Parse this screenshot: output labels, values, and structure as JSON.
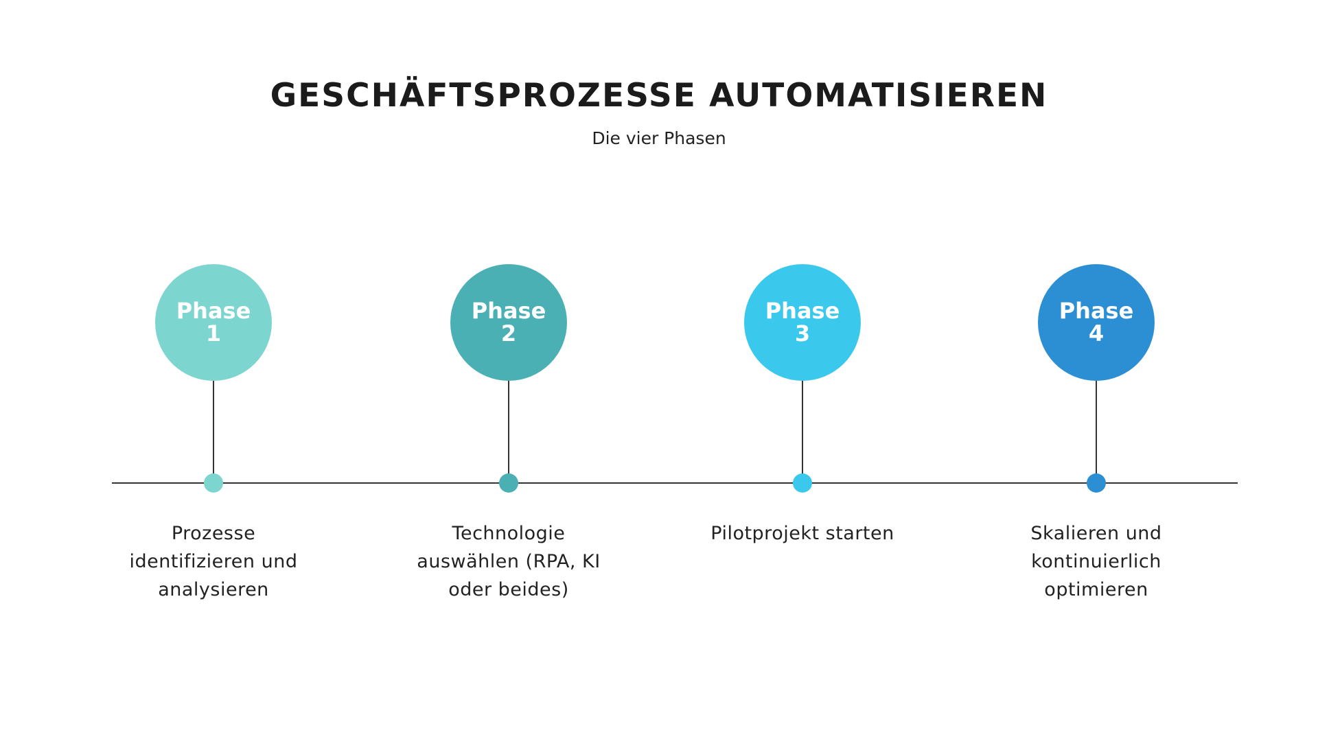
{
  "header": {
    "title": "GESCHÄFTSPROZESSE AUTOMATISIEREN",
    "subtitle": "Die vier Phasen"
  },
  "phases": [
    {
      "label": "Phase",
      "number": "1",
      "description": "Prozesse identifizieren und analysieren",
      "color": "#7dd5d0"
    },
    {
      "label": "Phase",
      "number": "2",
      "description": "Technologie auswählen (RPA, KI oder beides)",
      "color": "#4bb0b4"
    },
    {
      "label": "Phase",
      "number": "3",
      "description": "Pilotprojekt starten",
      "color": "#3ac8ec"
    },
    {
      "label": "Phase",
      "number": "4",
      "description": "Skalieren und kontinuierlich optimieren",
      "color": "#2c8fd4"
    }
  ]
}
